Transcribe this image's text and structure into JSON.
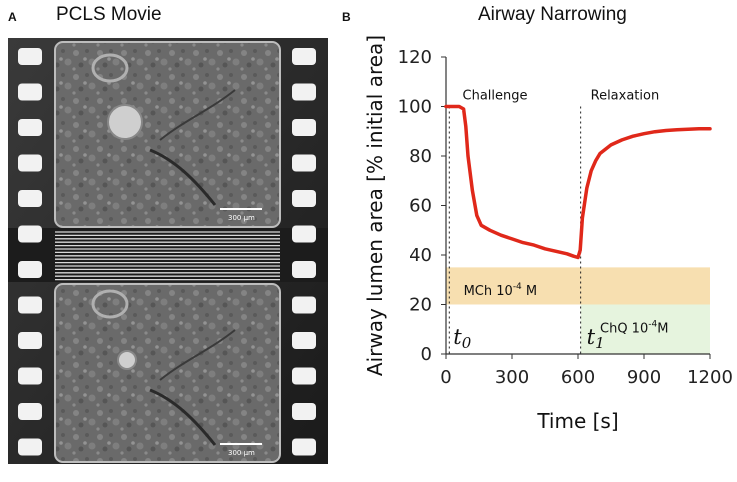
{
  "panel_a": {
    "letter": "A",
    "title": "PCLS Movie",
    "scale_label_top": "300 µm",
    "scale_label_bottom": "300 µm"
  },
  "panel_b": {
    "letter": "B",
    "title": "Airway Narrowing"
  },
  "colors": {
    "trace": "#e0281a",
    "mch_band": "#f7dfb0",
    "chq_band": "#e6f4de",
    "film": "#2a2a2a"
  },
  "chart_data": {
    "type": "line",
    "title": "Airway Narrowing",
    "xlabel": "Time [s]",
    "ylabel": "Airway lumen area [% initial area]",
    "xlim": [
      0,
      1200
    ],
    "ylim": [
      0,
      120
    ],
    "xticks": [
      "0",
      "300",
      "600",
      "900",
      "1200"
    ],
    "yticks": [
      "0",
      "20",
      "40",
      "60",
      "80",
      "100",
      "120"
    ],
    "grid": false,
    "series": [
      {
        "x": [
          0,
          30,
          60,
          80,
          90,
          100,
          120,
          140,
          160,
          200,
          250,
          300,
          350,
          400,
          450,
          500,
          550,
          580,
          600,
          610,
          620,
          640,
          660,
          680,
          700,
          750,
          800,
          850,
          900,
          950,
          1000,
          1050,
          1100,
          1150,
          1200
        ],
        "values": [
          100,
          100,
          100,
          99,
          92,
          80,
          66,
          56,
          52,
          50,
          48,
          46.5,
          45,
          44,
          42.5,
          41.5,
          40.5,
          39.5,
          39,
          42,
          55,
          67,
          74,
          78,
          81,
          84.5,
          86.5,
          88,
          89,
          89.8,
          90.3,
          90.6,
          90.8,
          91,
          91
        ]
      }
    ],
    "annotations": {
      "vlines": [
        15,
        612
      ],
      "challenge_label": "Challenge",
      "relaxation_label": "Relaxation",
      "t0_label": "t",
      "t0_sub": "0",
      "t1_label": "t",
      "t1_sub": "1",
      "mch_band": {
        "x": [
          0,
          1200
        ],
        "y": [
          20,
          35
        ],
        "label": "MCh 10",
        "exp": "-4",
        "unit": " M"
      },
      "chq_band": {
        "x": [
          612,
          1200
        ],
        "y": [
          0,
          20
        ],
        "label": "ChQ 10",
        "exp": "-4",
        "unit": "M"
      }
    }
  }
}
